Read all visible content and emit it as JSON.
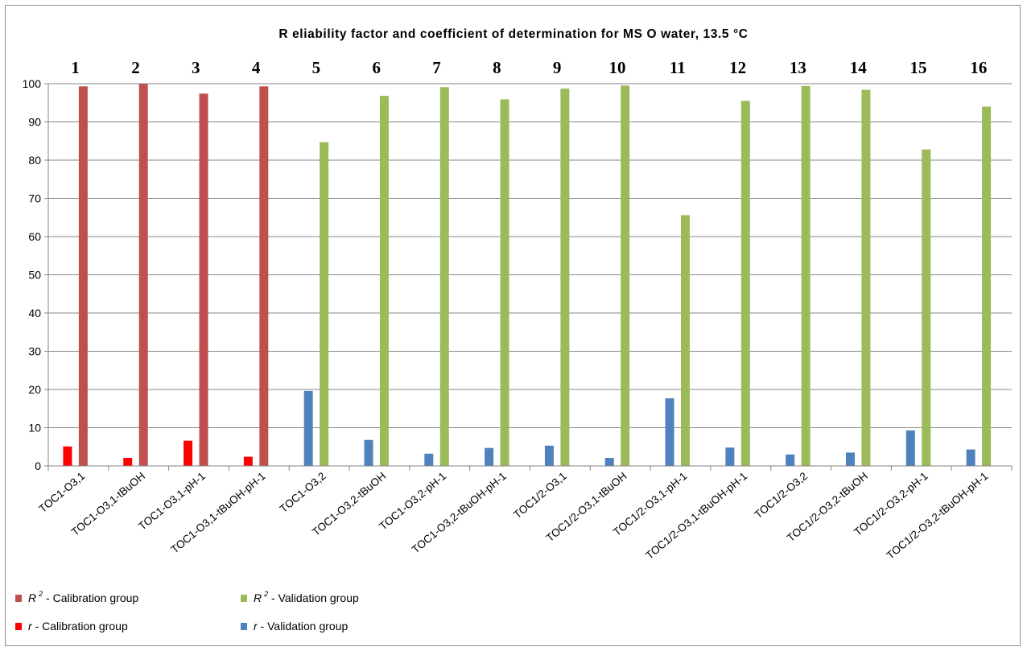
{
  "chart_data": {
    "type": "bar",
    "title": "R eliability factor and coefficient of determination for MS O water, 13.5 °C",
    "column_numbers": [
      "1",
      "2",
      "3",
      "4",
      "5",
      "6",
      "7",
      "8",
      "9",
      "10",
      "11",
      "12",
      "13",
      "14",
      "15",
      "16"
    ],
    "categories": [
      "TOC1-O3,1",
      "TOC1-O3,1-tBuOH",
      "TOC1-O3,1-pH-1",
      "TOC1-O3,1-tBuOH-pH-1",
      "TOC1-O3,2",
      "TOC1-O3,2-tBuOH",
      "TOC1-O3,2-pH-1",
      "TOC1-O3,2-tBuOH-pH-1",
      "TOC1/2-O3,1",
      "TOC1/2-O3,1-tBuOH",
      "TOC1/2-O3,1-pH-1",
      "TOC1/2-O3,1-tBuOH-pH-1",
      "TOC1/2-O3,2",
      "TOC1/2-O3,2-tBuOH",
      "TOC1/2-O3,2-pH-1",
      "TOC1/2-O3,2-tBuOH-pH-1"
    ],
    "series": [
      {
        "name": "R 2 - Calibration group",
        "symbol": "R",
        "sup": "2",
        "suffix": " - Calibration group",
        "color": "#c0504d",
        "values": [
          99.3,
          99.9,
          97.4,
          99.3,
          null,
          null,
          null,
          null,
          null,
          null,
          null,
          null,
          null,
          null,
          null,
          null
        ]
      },
      {
        "name": "r - Calibration group",
        "symbol": "r",
        "sup": "",
        "suffix": " - Calibration group",
        "color": "#ff0000",
        "values": [
          5.1,
          2.1,
          6.6,
          2.4,
          null,
          null,
          null,
          null,
          null,
          null,
          null,
          null,
          null,
          null,
          null,
          null
        ]
      },
      {
        "name": "R 2 - Validation group",
        "symbol": "R",
        "sup": "2",
        "suffix": " - Validation group",
        "color": "#9bbb59",
        "values": [
          null,
          null,
          null,
          null,
          84.7,
          96.8,
          99.1,
          95.9,
          98.7,
          99.5,
          65.6,
          95.5,
          99.4,
          98.4,
          82.8,
          94.0
        ]
      },
      {
        "name": "r - Validation group",
        "symbol": "r",
        "sup": "",
        "suffix": " - Validation group",
        "color": "#4f81bd",
        "values": [
          null,
          null,
          null,
          null,
          19.6,
          6.8,
          3.2,
          4.7,
          5.3,
          2.1,
          17.7,
          4.8,
          3.0,
          3.5,
          9.3,
          4.3
        ]
      }
    ],
    "ylim": [
      0,
      100
    ],
    "yticks": [
      0,
      10,
      20,
      30,
      40,
      50,
      60,
      70,
      80,
      90,
      100
    ],
    "grid": true,
    "legend_position": "bottom-left"
  }
}
